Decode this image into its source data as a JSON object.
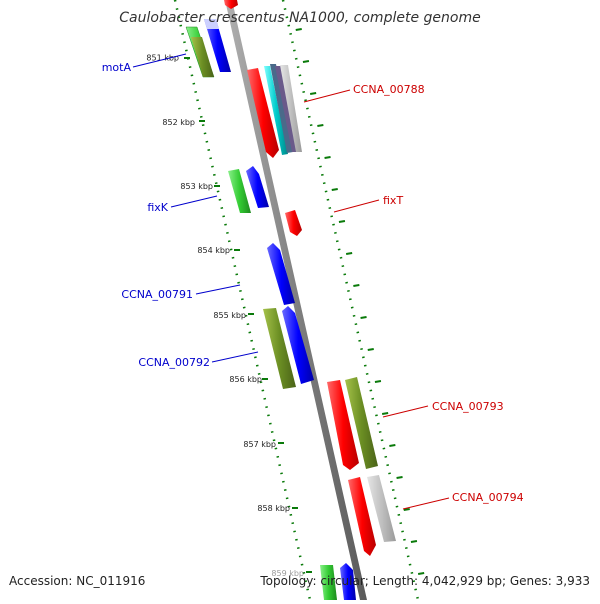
{
  "map": {
    "title": "Caulobacter crescentus NA1000, complete genome",
    "accession": "Accession: NC_011916",
    "summary": "Topology: circular; Length: 4,042,929 bp; Genes: 3,933"
  },
  "scale": {
    "ticks": [
      "851 kbp",
      "852 kbp",
      "853 kbp",
      "854 kbp",
      "855 kbp",
      "856 kbp",
      "857 kbp",
      "858 kbp",
      "859 kbp"
    ]
  },
  "genes": {
    "left": [
      "motA",
      "fixK",
      "CCNA_00791",
      "CCNA_00792"
    ],
    "right": [
      "CCNA_00788",
      "fixT",
      "CCNA_00793",
      "CCNA_00794"
    ]
  },
  "colors": {
    "forward_label": "#cc0000",
    "reverse_label": "#0000cc",
    "backbone": "#808080",
    "ticks": "#0a7a0a",
    "cds_forward": "#ff0000",
    "cds_reverse": "#0000ff",
    "orf": "#33cc33",
    "blast_dark": "#6b8e23",
    "blast_light": "#c0c0c0",
    "gc_cyan": "#00cccc"
  }
}
